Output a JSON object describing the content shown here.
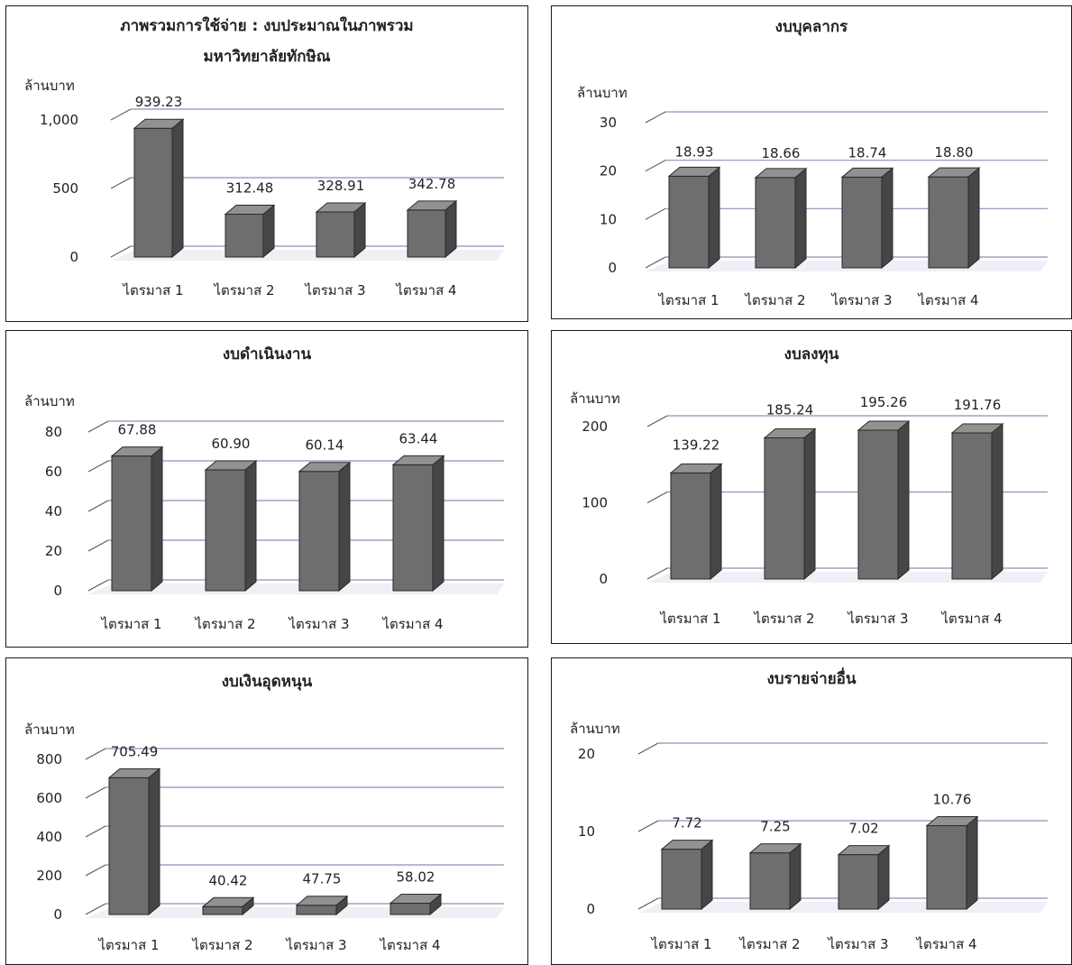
{
  "chart_data": [
    {
      "type": "bar",
      "title_lines": [
        "ภาพรวมการใช้จ่าย : งบประมาณในภาพรวม",
        "มหาวิทยาลัยทักษิณ"
      ],
      "ylabel": "ล้านบาท",
      "categories": [
        "ไตรมาส 1",
        "ไตรมาส 2",
        "ไตรมาส 3",
        "ไตรมาส 4"
      ],
      "values": [
        939.23,
        312.48,
        328.91,
        342.78
      ],
      "value_labels": [
        "939.23",
        "312.48",
        "328.91",
        "342.78"
      ],
      "ylim": [
        0,
        1000
      ],
      "yticks": [
        0,
        500,
        1000
      ],
      "ytick_labels": [
        "0",
        "500",
        "1,000"
      ],
      "grid": true,
      "bar_color": "#6e6e6e"
    },
    {
      "type": "bar",
      "title_lines": [
        "งบบุคลากร"
      ],
      "ylabel": "ล้านบาท",
      "categories": [
        "ไตรมาส 1",
        "ไตรมาส 2",
        "ไตรมาส 3",
        "ไตรมาส 4"
      ],
      "values": [
        18.93,
        18.66,
        18.74,
        18.8
      ],
      "value_labels": [
        "18.93",
        "18.66",
        "18.74",
        "18.80"
      ],
      "ylim": [
        0,
        30
      ],
      "yticks": [
        0,
        10,
        20,
        30
      ],
      "ytick_labels": [
        "0",
        "10",
        "20",
        "30"
      ],
      "grid": true,
      "bar_color": "#6e6e6e"
    },
    {
      "type": "bar",
      "title_lines": [
        "งบดำเนินงาน"
      ],
      "ylabel": "ล้านบาท",
      "categories": [
        "ไตรมาส 1",
        "ไตรมาส 2",
        "ไตรมาส 3",
        "ไตรมาส 4"
      ],
      "values": [
        67.88,
        60.9,
        60.14,
        63.44
      ],
      "value_labels": [
        "67.88",
        "60.90",
        "60.14",
        "63.44"
      ],
      "ylim": [
        0,
        80
      ],
      "yticks": [
        0,
        20,
        40,
        60,
        80
      ],
      "ytick_labels": [
        "0",
        "20",
        "40",
        "60",
        "80"
      ],
      "grid": true,
      "bar_color": "#6e6e6e"
    },
    {
      "type": "bar",
      "title_lines": [
        "งบลงทุน"
      ],
      "ylabel": "ล้านบาท",
      "categories": [
        "ไตรมาส 1",
        "ไตรมาส 2",
        "ไตรมาส 3",
        "ไตรมาส 4"
      ],
      "values": [
        139.22,
        185.24,
        195.26,
        191.76
      ],
      "value_labels": [
        "139.22",
        "185.24",
        "195.26",
        "191.76"
      ],
      "ylim": [
        0,
        200
      ],
      "yticks": [
        0,
        100,
        200
      ],
      "ytick_labels": [
        "0",
        "100",
        "200"
      ],
      "grid": true,
      "bar_color": "#6e6e6e"
    },
    {
      "type": "bar",
      "title_lines": [
        "งบเงินอุดหนุน"
      ],
      "ylabel": "ล้านบาท",
      "categories": [
        "ไตรมาส 1",
        "ไตรมาส 2",
        "ไตรมาส 3",
        "ไตรมาส 4"
      ],
      "values": [
        705.49,
        40.42,
        47.75,
        58.02
      ],
      "value_labels": [
        "705.49",
        "40.42",
        "47.75",
        "58.02"
      ],
      "ylim": [
        0,
        800
      ],
      "yticks": [
        0,
        200,
        400,
        600,
        800
      ],
      "ytick_labels": [
        "0",
        "200",
        "400",
        "600",
        "800"
      ],
      "grid": true,
      "bar_color": "#6e6e6e"
    },
    {
      "type": "bar",
      "title_lines": [
        "งบรายจ่ายอื่น"
      ],
      "ylabel": "ล้านบาท",
      "categories": [
        "ไตรมาส 1",
        "ไตรมาส 2",
        "ไตรมาส 3",
        "ไตรมาส 4"
      ],
      "values": [
        7.72,
        7.25,
        7.02,
        10.76
      ],
      "value_labels": [
        "7.72",
        "7.25",
        "7.02",
        "10.76"
      ],
      "ylim": [
        0,
        20
      ],
      "yticks": [
        0,
        10,
        20
      ],
      "ytick_labels": [
        "0",
        "10",
        "20"
      ],
      "grid": true,
      "bar_color": "#6e6e6e"
    }
  ]
}
